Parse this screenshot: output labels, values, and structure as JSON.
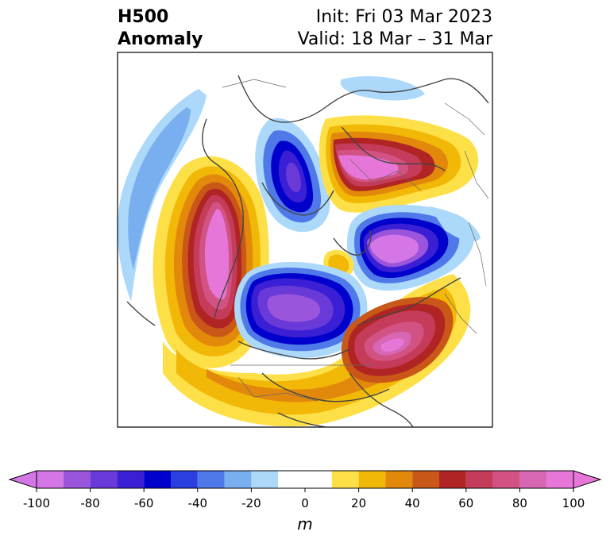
{
  "title": {
    "line1": "H500",
    "line2": "Anomaly",
    "init": "Init: Fri 03 Mar 2023",
    "valid": "Valid: 18 Mar – 31 Mar"
  },
  "colorbar": {
    "unit": "m",
    "ticks": [
      "-100",
      "-80",
      "-60",
      "-40",
      "-20",
      "0",
      "20",
      "40",
      "60",
      "80",
      "100"
    ],
    "levels": [
      -100,
      -90,
      -80,
      -70,
      -60,
      -50,
      -40,
      -30,
      -20,
      -10,
      10,
      20,
      30,
      40,
      50,
      60,
      70,
      80,
      90,
      100
    ],
    "colors": [
      "#d576e6",
      "#9b55dd",
      "#6a3ad8",
      "#3b1fd4",
      "#0000cc",
      "#2a3fe0",
      "#4f78e8",
      "#79afee",
      "#acd8fa",
      "#ffffff",
      "#fde047",
      "#f2b807",
      "#e2890c",
      "#c95717",
      "#b02424",
      "#c53c5a",
      "#d25283",
      "#d767b3",
      "#e677d9"
    ]
  },
  "colors": {
    "strong_neg": "#3b1fd4",
    "strong_pos": "#e677d9",
    "coastline": "#444444"
  }
}
